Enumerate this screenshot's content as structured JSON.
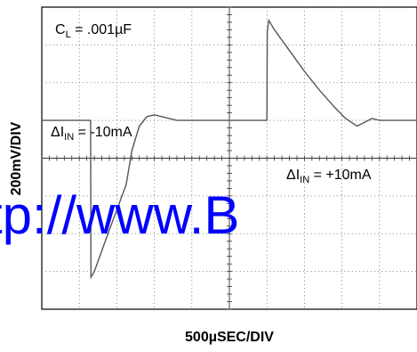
{
  "chart_data": {
    "type": "line",
    "title": "",
    "xlabel": "500µSEC/DIV",
    "ylabel": "200mV/DIV",
    "grid": true,
    "x_divisions": 10,
    "y_divisions": 8,
    "annotations": [
      {
        "id": "cl",
        "prefix": "C",
        "sub": "L",
        "suffix": " = .001µF"
      },
      {
        "id": "step-down",
        "prefix": "ΔI",
        "sub": "IN",
        "suffix": " = -10mA"
      },
      {
        "id": "step-up",
        "prefix": "ΔI",
        "sub": "IN",
        "suffix": " = +10mA"
      }
    ],
    "series": [
      {
        "x": [
          0,
          1.0,
          1.3,
          1.31,
          1.4,
          1.8,
          2.25,
          2.4,
          2.6,
          2.8,
          3.0,
          3.6,
          5.0,
          6.0,
          6.01,
          6.05,
          6.2,
          6.6,
          7.0,
          7.4,
          7.8,
          8.1,
          8.4,
          8.6,
          8.8,
          9.0,
          9.3,
          10.0
        ],
        "y": [
          0,
          0,
          0,
          -4.15,
          -4.0,
          -2.9,
          -1.7,
          -0.8,
          -0.15,
          0.1,
          0.15,
          0.0,
          0.0,
          0.0,
          2.35,
          2.65,
          2.4,
          1.85,
          1.3,
          0.8,
          0.35,
          0.05,
          -0.15,
          -0.05,
          0.05,
          0.0,
          0.0,
          0.0
        ]
      }
    ]
  },
  "watermark": "tp://www.B"
}
